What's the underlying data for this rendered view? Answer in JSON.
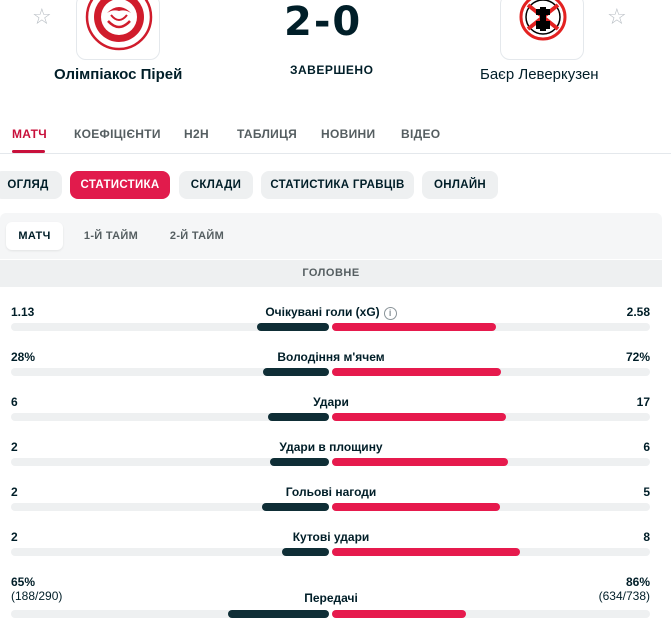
{
  "match": {
    "home_team": "Олімпіакос Пірей",
    "away_team": "Баєр Леверкузен",
    "score": "2-0",
    "status": "ЗАВЕРШЕНО"
  },
  "tabs": [
    "МАТЧ",
    "КОЕФІЦІЄНТИ",
    "H2H",
    "ТАБЛИЦЯ",
    "НОВИНИ",
    "ВІДЕО"
  ],
  "subtabs": [
    "ОГЛЯД",
    "СТАТИСТИКА",
    "СКЛАДИ",
    "СТАТИСТИКА ГРАВЦІВ",
    "ОНЛАЙН"
  ],
  "periods": [
    "МАТЧ",
    "1-Й ТАЙМ",
    "2-Й ТАЙМ"
  ],
  "section_title": "ГОЛОВНЕ",
  "stats": [
    {
      "label": "Очікувані голи (xG)",
      "home": "1.13",
      "away": "2.58",
      "home_share": 0.305,
      "away_share": 0.695,
      "info": true
    },
    {
      "label": "Володіння м'ячем",
      "home": "28%",
      "away": "72%",
      "home_share": 0.28,
      "away_share": 0.72
    },
    {
      "label": "Удари",
      "home": "6",
      "away": "17",
      "home_share": 0.261,
      "away_share": 0.739
    },
    {
      "label": "Удари в площину",
      "home": "2",
      "away": "6",
      "home_share": 0.25,
      "away_share": 0.75
    },
    {
      "label": "Гольові нагоди",
      "home": "2",
      "away": "5",
      "home_share": 0.286,
      "away_share": 0.714
    },
    {
      "label": "Кутові удари",
      "home": "2",
      "away": "8",
      "home_share": 0.2,
      "away_share": 0.8
    },
    {
      "label": "Передачі",
      "home": "65%",
      "away": "86%",
      "home_sub": "(188/290)",
      "away_sub": "(634/738)",
      "home_share": 0.43,
      "away_share": 0.57
    }
  ],
  "colors": {
    "accent": "#e61a4d",
    "home_bar": "#0f2e36",
    "tab_active": "#c8103b"
  }
}
